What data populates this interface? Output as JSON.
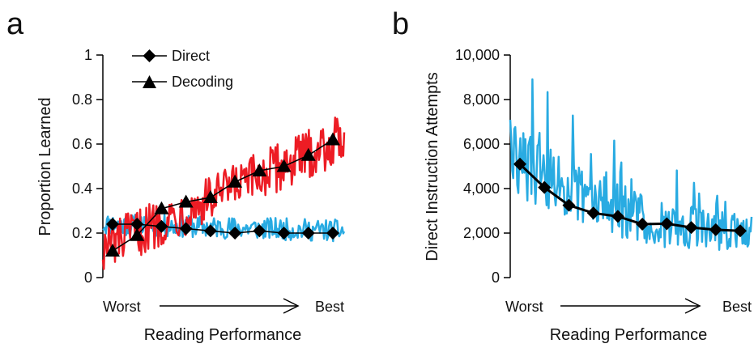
{
  "chart_data": [
    {
      "type": "line",
      "panel_label": "a",
      "xlabel": "Reading Performance",
      "ylabel": "Proportion Learned",
      "x_start_label": "Worst",
      "x_end_label": "Best",
      "ylim": [
        0,
        1
      ],
      "yticks": [
        "0",
        "0.2",
        "0.4",
        "0.6",
        "0.8",
        "1"
      ],
      "ytick_values": [
        0,
        0.2,
        0.4,
        0.6,
        0.8,
        1
      ],
      "legend_position": "top-center",
      "series": [
        {
          "name": "Direct",
          "marker": "diamond",
          "color": "#000000",
          "values": [
            0.24,
            0.24,
            0.23,
            0.22,
            0.21,
            0.2,
            0.21,
            0.2,
            0.2,
            0.2
          ]
        },
        {
          "name": "Decoding",
          "marker": "triangle",
          "color": "#000000",
          "values": [
            0.12,
            0.19,
            0.31,
            0.34,
            0.36,
            0.43,
            0.48,
            0.5,
            0.55,
            0.62
          ]
        }
      ],
      "raw_series": [
        {
          "color": "#29abe2",
          "trend_start": 0.24,
          "trend_end": 0.21,
          "noise": 0.05
        },
        {
          "color": "#ed1c24",
          "trend_start": 0.13,
          "trend_end": 0.63,
          "noise": 0.11
        }
      ]
    },
    {
      "type": "line",
      "panel_label": "b",
      "xlabel": "Reading Performance",
      "ylabel": "Direct Instruction Attempts",
      "x_start_label": "Worst",
      "x_end_label": "Best",
      "ylim": [
        0,
        10000
      ],
      "yticks": [
        "0",
        "2,000",
        "4,000",
        "6,000",
        "8,000",
        "10,000"
      ],
      "ytick_values": [
        0,
        2000,
        4000,
        6000,
        8000,
        10000
      ],
      "series": [
        {
          "marker": "diamond",
          "color": "#000000",
          "values": [
            5100,
            4050,
            3250,
            2900,
            2750,
            2400,
            2420,
            2250,
            2150,
            2100
          ]
        }
      ],
      "raw_series": [
        {
          "color": "#29abe2",
          "trend_start": 5500,
          "trend_end": 2100,
          "noise": 900
        }
      ]
    }
  ]
}
